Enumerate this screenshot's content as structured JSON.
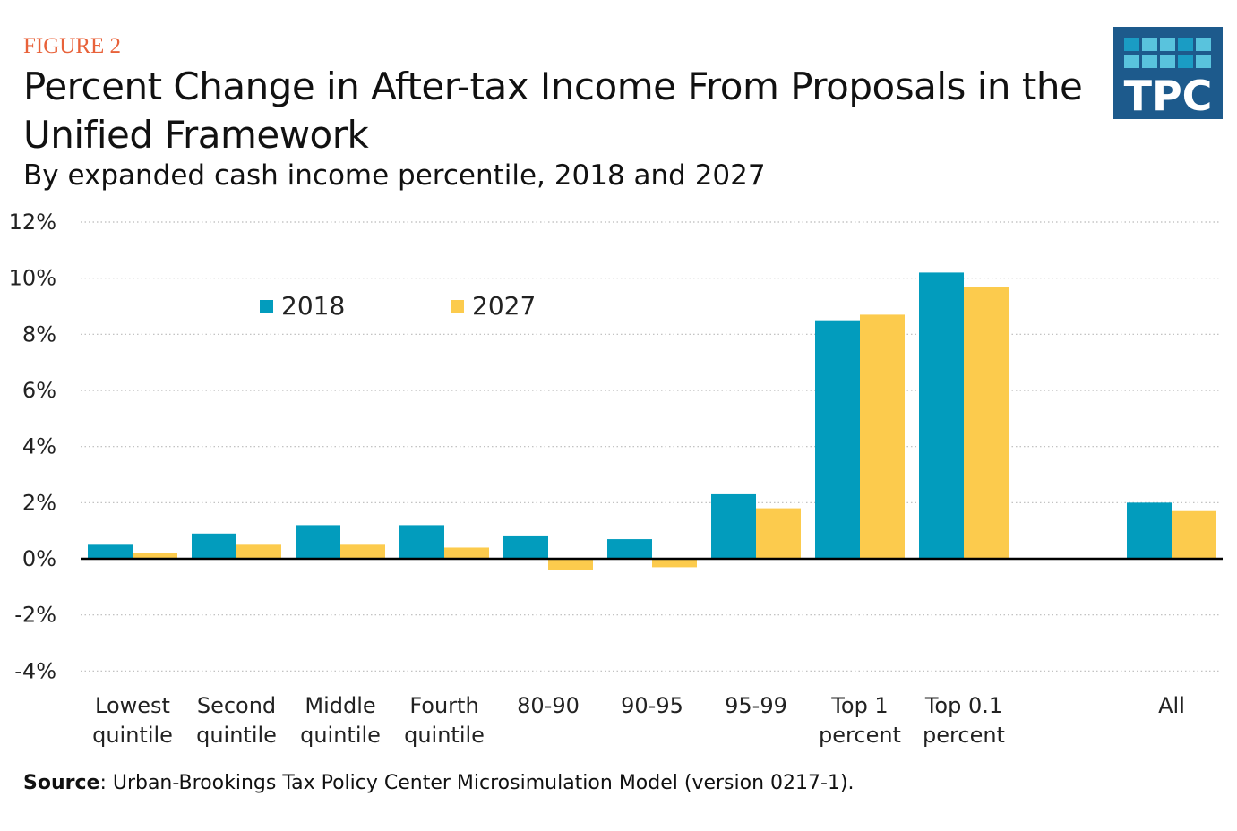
{
  "figure_label": "FIGURE 2",
  "logo_text": "TPC",
  "source_label": "Source",
  "source_text": ": Urban-Brookings Tax Policy Center Microsimulation Model (version 0217-1).",
  "chart_data": {
    "type": "bar",
    "title": "Percent Change in After-tax Income From Proposals in the Unified Framework",
    "subtitle": "By expanded cash income percentile, 2018 and 2027",
    "xlabel": "",
    "ylabel": "",
    "ylim": [
      -4,
      12
    ],
    "yticks": [
      12,
      10,
      8,
      6,
      4,
      2,
      0,
      -2,
      -4
    ],
    "ytick_labels": [
      "12%",
      "10%",
      "8%",
      "6%",
      "4%",
      "2%",
      "0%",
      "-2%",
      "-4%"
    ],
    "grid": true,
    "legend_position": "top-left",
    "categories": [
      [
        "Lowest",
        "quintile"
      ],
      [
        "Second",
        "quintile"
      ],
      [
        "Middle",
        "quintile"
      ],
      [
        "Fourth",
        "quintile"
      ],
      [
        "80-90",
        ""
      ],
      [
        "90-95",
        ""
      ],
      [
        "95-99",
        ""
      ],
      [
        "Top 1",
        "percent"
      ],
      [
        "Top 0.1",
        "percent"
      ],
      [
        "All",
        ""
      ]
    ],
    "series": [
      {
        "name": "2018",
        "color": "#029cbd",
        "values": [
          0.5,
          0.9,
          1.2,
          1.2,
          0.8,
          0.7,
          2.3,
          8.5,
          10.2,
          2.0
        ]
      },
      {
        "name": "2027",
        "color": "#fccb4d",
        "values": [
          0.2,
          0.5,
          0.5,
          0.4,
          -0.4,
          -0.3,
          1.8,
          8.7,
          9.7,
          1.7
        ]
      }
    ]
  }
}
